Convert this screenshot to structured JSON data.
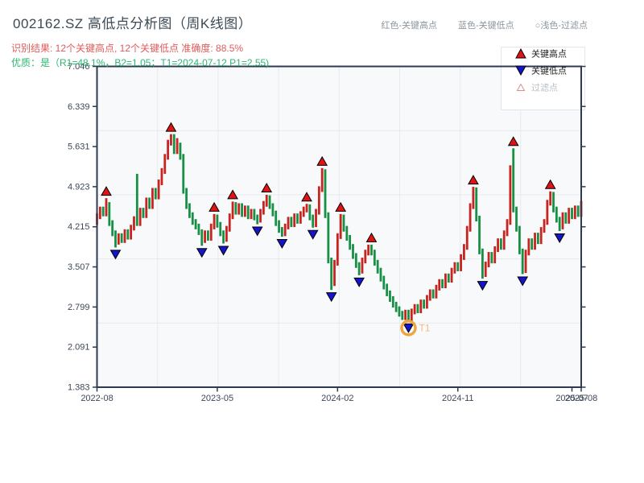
{
  "header": {
    "title": "002162.SZ 高低点分析图（周K线图）",
    "hints": [
      {
        "label": "红色-关键高点"
      },
      {
        "label": "蓝色-关键低点"
      },
      {
        "label": "○浅色-过滤点"
      }
    ],
    "result_line": "识别结果: 12个关键高点, 12个关键低点  准确度: 88.5%",
    "quality_line": "优质：是（R1=48.1%，B2=1.05；T1=2024-07-12 P1=2.55)"
  },
  "legend": {
    "items": [
      {
        "label": "关键高点",
        "marker": "filled-up-triangle",
        "color": "#e01414",
        "text_color": "#1f1f1f"
      },
      {
        "label": "关键低点",
        "marker": "filled-down-triangle",
        "color": "#1414cc",
        "text_color": "#1f1f1f"
      },
      {
        "label": "过滤点",
        "marker": "open-up-triangle",
        "color": "#dd8f8f",
        "text_color": "#b9bfc6"
      }
    ]
  },
  "chart_data": {
    "type": "candlestick",
    "symbol": "002162.SZ",
    "period": "weekly",
    "ylim": [
      1.383,
      7.046
    ],
    "y_ticks": [
      7.046,
      6.339,
      5.631,
      4.923,
      4.215,
      3.507,
      2.799,
      2.091,
      1.383
    ],
    "x_ticks": [
      {
        "week": 0,
        "label": "2022-08"
      },
      {
        "week": 39,
        "label": "2023-05"
      },
      {
        "week": 78,
        "label": "2024-02"
      },
      {
        "week": 117,
        "label": "2024-11"
      },
      {
        "week": 154,
        "label": "2025-07"
      },
      {
        "week": 157,
        "label": "2025-08"
      }
    ],
    "weeks_total": 158,
    "grid_divisions": {
      "x": 8,
      "y": 5
    },
    "candles": [
      [
        4.3,
        4.45,
        4.25,
        4.4
      ],
      [
        4.4,
        4.57,
        4.35,
        4.52
      ],
      [
        4.52,
        4.57,
        4.4,
        4.45
      ],
      [
        4.45,
        4.72,
        4.4,
        4.6
      ],
      [
        4.6,
        4.65,
        4.23,
        4.28
      ],
      [
        4.28,
        4.33,
        4.05,
        4.1
      ],
      [
        4.1,
        4.15,
        3.85,
        3.95
      ],
      [
        3.95,
        4.1,
        3.9,
        4.05
      ],
      [
        4.05,
        4.1,
        3.93,
        3.98
      ],
      [
        3.98,
        4.17,
        3.93,
        4.12
      ],
      [
        4.12,
        4.17,
        3.99,
        4.04
      ],
      [
        4.04,
        4.25,
        3.99,
        4.2
      ],
      [
        4.2,
        4.4,
        4.15,
        4.35
      ],
      [
        4.35,
        5.15,
        4.23,
        4.28
      ],
      [
        4.28,
        4.55,
        4.23,
        4.5
      ],
      [
        4.5,
        4.55,
        4.37,
        4.42
      ],
      [
        4.42,
        4.73,
        4.37,
        4.68
      ],
      [
        4.68,
        4.73,
        4.53,
        4.58
      ],
      [
        4.58,
        4.9,
        4.53,
        4.85
      ],
      [
        4.85,
        4.9,
        4.7,
        4.75
      ],
      [
        4.75,
        5.05,
        4.7,
        5.0
      ],
      [
        5.0,
        5.25,
        4.95,
        5.2
      ],
      [
        5.2,
        5.5,
        5.15,
        5.45
      ],
      [
        5.45,
        5.75,
        5.4,
        5.7
      ],
      [
        5.7,
        5.85,
        5.65,
        5.8
      ],
      [
        5.8,
        5.85,
        5.5,
        5.55
      ],
      [
        5.55,
        5.78,
        5.5,
        5.65
      ],
      [
        5.65,
        5.7,
        5.4,
        5.45
      ],
      [
        5.45,
        5.5,
        4.8,
        4.85
      ],
      [
        4.85,
        4.9,
        4.53,
        4.58
      ],
      [
        4.58,
        4.63,
        4.37,
        4.42
      ],
      [
        4.42,
        4.47,
        4.25,
        4.3
      ],
      [
        4.3,
        4.35,
        4.17,
        4.22
      ],
      [
        4.22,
        4.27,
        4.07,
        4.12
      ],
      [
        4.12,
        4.17,
        3.88,
        3.98
      ],
      [
        3.98,
        4.15,
        3.93,
        4.1
      ],
      [
        4.1,
        4.15,
        3.97,
        4.02
      ],
      [
        4.02,
        4.27,
        3.97,
        4.22
      ],
      [
        4.22,
        4.44,
        4.17,
        4.38
      ],
      [
        4.38,
        4.43,
        4.2,
        4.25
      ],
      [
        4.25,
        4.3,
        4.05,
        4.1
      ],
      [
        4.1,
        4.15,
        3.92,
        4.0
      ],
      [
        4.0,
        4.23,
        3.95,
        4.18
      ],
      [
        4.18,
        4.45,
        4.13,
        4.4
      ],
      [
        4.4,
        4.66,
        4.35,
        4.6
      ],
      [
        4.6,
        4.65,
        4.43,
        4.48
      ],
      [
        4.48,
        4.63,
        4.43,
        4.58
      ],
      [
        4.58,
        4.63,
        4.39,
        4.44
      ],
      [
        4.44,
        4.59,
        4.39,
        4.54
      ],
      [
        4.54,
        4.59,
        4.35,
        4.4
      ],
      [
        4.4,
        4.53,
        4.35,
        4.48
      ],
      [
        4.48,
        4.53,
        4.33,
        4.38
      ],
      [
        4.38,
        4.43,
        4.26,
        4.34
      ],
      [
        4.34,
        4.53,
        4.29,
        4.48
      ],
      [
        4.48,
        4.67,
        4.43,
        4.62
      ],
      [
        4.62,
        4.78,
        4.57,
        4.72
      ],
      [
        4.72,
        4.77,
        4.53,
        4.58
      ],
      [
        4.58,
        4.63,
        4.4,
        4.45
      ],
      [
        4.45,
        4.5,
        4.23,
        4.28
      ],
      [
        4.28,
        4.33,
        4.11,
        4.16
      ],
      [
        4.16,
        4.21,
        4.04,
        4.1
      ],
      [
        4.1,
        4.27,
        4.05,
        4.22
      ],
      [
        4.22,
        4.39,
        4.17,
        4.34
      ],
      [
        4.34,
        4.39,
        4.21,
        4.26
      ],
      [
        4.26,
        4.45,
        4.21,
        4.4
      ],
      [
        4.4,
        4.45,
        4.27,
        4.32
      ],
      [
        4.32,
        4.49,
        4.27,
        4.44
      ],
      [
        4.44,
        4.57,
        4.39,
        4.52
      ],
      [
        4.52,
        4.62,
        4.47,
        4.56
      ],
      [
        4.56,
        4.61,
        4.33,
        4.38
      ],
      [
        4.38,
        4.43,
        4.2,
        4.26
      ],
      [
        4.26,
        4.53,
        4.21,
        4.48
      ],
      [
        4.48,
        4.93,
        4.43,
        4.88
      ],
      [
        4.88,
        5.25,
        4.83,
        5.18
      ],
      [
        5.18,
        5.23,
        4.37,
        4.42
      ],
      [
        4.42,
        4.47,
        3.57,
        3.62
      ],
      [
        3.62,
        3.67,
        3.1,
        3.22
      ],
      [
        3.22,
        3.63,
        3.17,
        3.58
      ],
      [
        3.58,
        4.1,
        3.53,
        4.05
      ],
      [
        4.05,
        4.44,
        4.0,
        4.38
      ],
      [
        4.38,
        4.43,
        4.13,
        4.18
      ],
      [
        4.18,
        4.23,
        3.97,
        4.02
      ],
      [
        4.02,
        4.07,
        3.81,
        3.86
      ],
      [
        3.86,
        3.91,
        3.65,
        3.7
      ],
      [
        3.7,
        3.75,
        3.49,
        3.54
      ],
      [
        3.54,
        3.59,
        3.36,
        3.44
      ],
      [
        3.44,
        3.67,
        3.39,
        3.62
      ],
      [
        3.62,
        3.81,
        3.57,
        3.76
      ],
      [
        3.76,
        3.9,
        3.71,
        3.84
      ],
      [
        3.84,
        3.9,
        3.71,
        3.76
      ],
      [
        3.76,
        3.81,
        3.53,
        3.58
      ],
      [
        3.58,
        3.63,
        3.39,
        3.44
      ],
      [
        3.44,
        3.49,
        3.25,
        3.3
      ],
      [
        3.3,
        3.35,
        3.11,
        3.16
      ],
      [
        3.16,
        3.21,
        2.99,
        3.04
      ],
      [
        3.04,
        3.09,
        2.89,
        2.94
      ],
      [
        2.94,
        2.99,
        2.79,
        2.84
      ],
      [
        2.84,
        2.89,
        2.71,
        2.76
      ],
      [
        2.76,
        2.81,
        2.63,
        2.68
      ],
      [
        2.68,
        2.73,
        2.57,
        2.62
      ],
      [
        2.62,
        2.75,
        2.57,
        2.7
      ],
      [
        2.7,
        2.75,
        2.55,
        2.6
      ],
      [
        2.6,
        2.77,
        2.55,
        2.72
      ],
      [
        2.72,
        2.85,
        2.67,
        2.8
      ],
      [
        2.8,
        2.85,
        2.69,
        2.74
      ],
      [
        2.74,
        2.93,
        2.69,
        2.88
      ],
      [
        2.88,
        2.93,
        2.77,
        2.82
      ],
      [
        2.82,
        3.01,
        2.77,
        2.96
      ],
      [
        2.96,
        3.11,
        2.91,
        3.06
      ],
      [
        3.06,
        3.11,
        2.95,
        3.0
      ],
      [
        3.0,
        3.19,
        2.95,
        3.14
      ],
      [
        3.14,
        3.29,
        3.09,
        3.24
      ],
      [
        3.24,
        3.29,
        3.13,
        3.18
      ],
      [
        3.18,
        3.39,
        3.13,
        3.34
      ],
      [
        3.34,
        3.39,
        3.23,
        3.28
      ],
      [
        3.28,
        3.49,
        3.23,
        3.44
      ],
      [
        3.44,
        3.59,
        3.39,
        3.54
      ],
      [
        3.54,
        3.59,
        3.43,
        3.48
      ],
      [
        3.48,
        3.73,
        3.43,
        3.68
      ],
      [
        3.68,
        3.91,
        3.63,
        3.86
      ],
      [
        3.86,
        4.23,
        3.81,
        4.18
      ],
      [
        4.18,
        4.63,
        4.13,
        4.58
      ],
      [
        4.58,
        4.92,
        4.53,
        4.86
      ],
      [
        4.86,
        4.91,
        4.31,
        4.36
      ],
      [
        4.36,
        4.41,
        3.73,
        3.78
      ],
      [
        3.78,
        3.83,
        3.3,
        3.38
      ],
      [
        3.38,
        3.6,
        3.33,
        3.55
      ],
      [
        3.55,
        3.77,
        3.5,
        3.72
      ],
      [
        3.72,
        3.77,
        3.57,
        3.62
      ],
      [
        3.62,
        3.87,
        3.57,
        3.82
      ],
      [
        3.82,
        4.01,
        3.77,
        3.96
      ],
      [
        3.96,
        4.01,
        3.81,
        3.86
      ],
      [
        3.86,
        4.15,
        3.81,
        4.1
      ],
      [
        4.1,
        4.35,
        4.05,
        4.3
      ],
      [
        4.3,
        5.3,
        4.25,
        5.1
      ],
      [
        5.1,
        5.6,
        4.47,
        4.52
      ],
      [
        4.52,
        4.57,
        4.13,
        4.18
      ],
      [
        4.18,
        4.23,
        3.73,
        3.78
      ],
      [
        3.78,
        3.83,
        3.38,
        3.45
      ],
      [
        3.45,
        3.81,
        3.4,
        3.76
      ],
      [
        3.76,
        4.01,
        3.71,
        3.96
      ],
      [
        3.96,
        4.01,
        3.81,
        3.86
      ],
      [
        3.86,
        4.11,
        3.81,
        4.06
      ],
      [
        4.06,
        4.11,
        3.91,
        3.96
      ],
      [
        3.96,
        4.21,
        3.91,
        4.16
      ],
      [
        4.16,
        4.35,
        4.11,
        4.3
      ],
      [
        4.3,
        4.69,
        4.25,
        4.64
      ],
      [
        4.64,
        4.84,
        4.59,
        4.78
      ],
      [
        4.78,
        4.83,
        4.47,
        4.52
      ],
      [
        4.52,
        4.57,
        4.29,
        4.34
      ],
      [
        4.34,
        4.39,
        4.14,
        4.22
      ],
      [
        4.22,
        4.47,
        4.17,
        4.42
      ],
      [
        4.42,
        4.47,
        4.27,
        4.32
      ],
      [
        4.32,
        4.55,
        4.27,
        4.5
      ],
      [
        4.5,
        4.55,
        4.35,
        4.4
      ],
      [
        4.4,
        4.59,
        4.35,
        4.54
      ],
      [
        4.54,
        4.59,
        4.39,
        4.44
      ],
      [
        4.44,
        4.67,
        4.39,
        4.62
      ]
    ],
    "key_highs": [
      {
        "week": 3,
        "price": 4.72
      },
      {
        "week": 24,
        "price": 5.85
      },
      {
        "week": 38,
        "price": 4.44
      },
      {
        "week": 44,
        "price": 4.66
      },
      {
        "week": 55,
        "price": 4.78
      },
      {
        "week": 68,
        "price": 4.62
      },
      {
        "week": 73,
        "price": 5.25
      },
      {
        "week": 79,
        "price": 4.44
      },
      {
        "week": 89,
        "price": 3.9
      },
      {
        "week": 122,
        "price": 4.92
      },
      {
        "week": 135,
        "price": 5.6
      },
      {
        "week": 147,
        "price": 4.84
      }
    ],
    "key_lows": [
      {
        "week": 6,
        "price": 3.85
      },
      {
        "week": 34,
        "price": 3.88
      },
      {
        "week": 41,
        "price": 3.92
      },
      {
        "week": 52,
        "price": 4.26
      },
      {
        "week": 60,
        "price": 4.04
      },
      {
        "week": 70,
        "price": 4.2
      },
      {
        "week": 76,
        "price": 3.1
      },
      {
        "week": 85,
        "price": 3.36
      },
      {
        "week": 101,
        "price": 2.55
      },
      {
        "week": 125,
        "price": 3.3
      },
      {
        "week": 138,
        "price": 3.38
      },
      {
        "week": 150,
        "price": 4.14
      }
    ],
    "t1_marker": {
      "label": "T1",
      "week": 101,
      "price": 2.55,
      "date": "2024-07-12"
    },
    "colors": {
      "up": "#c8241f",
      "down": "#178f44",
      "high_marker": "#e01414",
      "low_marker": "#1414cc",
      "marker_edge": "#000000",
      "t1_ring": "#eda63b",
      "t1_text": "#f2bd7a",
      "grid": "#e7e9ef",
      "plot_bg": "#f8f9fb",
      "spine": "#2e3a50",
      "tick_label": "#3c4858"
    }
  }
}
